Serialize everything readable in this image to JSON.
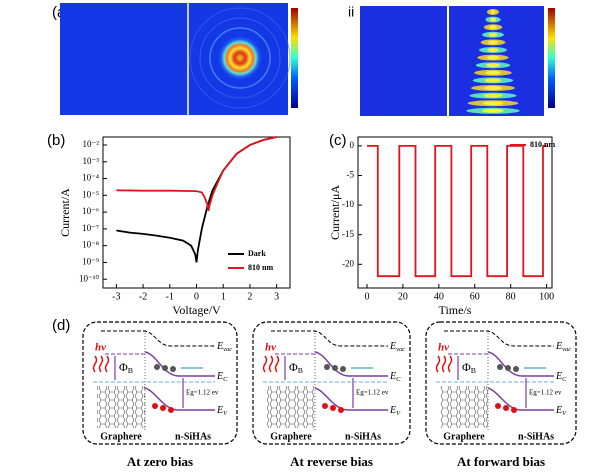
{
  "panel_labels": {
    "a": "(a)",
    "b": "(b)",
    "c": "(c)",
    "d": "(d)"
  },
  "panel_a": {
    "sub_i": "i",
    "sub_ii": "ii"
  },
  "chart_data": [
    {
      "type": "line",
      "xlabel": "Voltage/V",
      "ylabel": "Current/A",
      "log_y": true,
      "xlim": [
        -3.5,
        3.5
      ],
      "xticks": [
        -3,
        -2,
        -1,
        0,
        1,
        2,
        3
      ],
      "ylim": [
        3e-11,
        0.03
      ],
      "yticks": [
        {
          "value": 0.01,
          "label": "10⁻²"
        },
        {
          "value": 0.001,
          "label": "10⁻³"
        },
        {
          "value": 0.0001,
          "label": "10⁻⁴"
        },
        {
          "value": 1e-05,
          "label": "10⁻⁵"
        },
        {
          "value": 1e-06,
          "label": "10⁻⁶"
        },
        {
          "value": 1e-07,
          "label": "10⁻⁷"
        },
        {
          "value": 1e-08,
          "label": "10⁻⁸"
        },
        {
          "value": 1e-09,
          "label": "10⁻⁹"
        },
        {
          "value": 1e-10,
          "label": "10⁻¹⁰"
        }
      ],
      "legend": "lower-right",
      "series": [
        {
          "name": "Dark",
          "color": "#000000",
          "x": [
            -3,
            -2.5,
            -2,
            -1.5,
            -1,
            -0.5,
            -0.2,
            -0.05,
            0,
            0.05,
            0.2,
            0.4,
            0.6,
            1,
            1.5,
            2,
            2.5,
            3
          ],
          "values": [
            8e-08,
            6e-08,
            5e-08,
            4e-08,
            3e-08,
            2e-08,
            1e-08,
            3e-09,
            1e-09,
            5e-09,
            1e-07,
            2e-06,
            2e-05,
            0.0003,
            0.003,
            0.01,
            0.02,
            0.03
          ]
        },
        {
          "name": "810 nm",
          "color": "#e0141e",
          "x": [
            -3,
            -2,
            -1,
            0,
            0.2,
            0.3,
            0.4,
            0.45,
            0.5,
            0.6,
            0.8,
            1,
            1.5,
            2,
            2.5,
            3
          ],
          "values": [
            2e-05,
            1.9e-05,
            1.9e-05,
            1.8e-05,
            1.5e-05,
            8e-06,
            3e-06,
            1.2e-06,
            3e-06,
            1e-05,
            6e-05,
            0.0003,
            0.003,
            0.01,
            0.02,
            0.03
          ]
        }
      ]
    },
    {
      "type": "line",
      "xlabel": "Time/s",
      "ylabel": "Current/μA",
      "xlim": [
        -5,
        103
      ],
      "xticks": [
        0,
        20,
        40,
        60,
        80,
        100
      ],
      "ylim": [
        -24,
        1.5
      ],
      "yticks": [
        0,
        -5,
        -10,
        -15,
        -20
      ],
      "legend": "upper-right",
      "series": [
        {
          "name": "810 nm",
          "color": "#e0141e",
          "x": [
            0,
            6,
            6,
            18,
            18,
            27,
            27,
            38,
            38,
            47,
            47,
            58,
            58,
            67,
            67,
            78,
            78,
            87,
            87,
            98,
            98,
            100
          ],
          "values": [
            0,
            0,
            -22,
            -22,
            0,
            0,
            -22,
            -22,
            0,
            0,
            -22,
            -22,
            0,
            0,
            -22,
            -22,
            0,
            0,
            -22,
            -22,
            0,
            0
          ]
        }
      ]
    }
  ],
  "panel_d": [
    {
      "caption": "At zero bias",
      "hv": "hv",
      "phi": {
        "main": "Φ",
        "sub": "B"
      },
      "evac": {
        "main": "E",
        "sub": "vac"
      },
      "ec": {
        "main": "E",
        "sub": "C"
      },
      "ev": {
        "main": "E",
        "sub": "V"
      },
      "eg": "Eg=1.12 ev",
      "left": "Graphere",
      "right": "n-SiHAs"
    },
    {
      "caption": "At reverse bias",
      "hv": "hv",
      "phi": {
        "main": "Φ",
        "sub": "B"
      },
      "evac": {
        "main": "E",
        "sub": "vac"
      },
      "ec": {
        "main": "E",
        "sub": "C"
      },
      "ev": {
        "main": "E",
        "sub": "V"
      },
      "eg": "Eg=1.12 ev",
      "left": "Graphere",
      "right": "n-SiHAs"
    },
    {
      "caption": "At forward bias",
      "hv": "hv",
      "phi": {
        "main": "Φ",
        "sub": "B"
      },
      "evac": {
        "main": "E",
        "sub": "vac"
      },
      "ec": {
        "main": "E",
        "sub": "C"
      },
      "ev": {
        "main": "E",
        "sub": "V"
      },
      "eg": "Eg=1.12 ev",
      "left": "Graphere",
      "right": "n-SiHAs"
    }
  ]
}
